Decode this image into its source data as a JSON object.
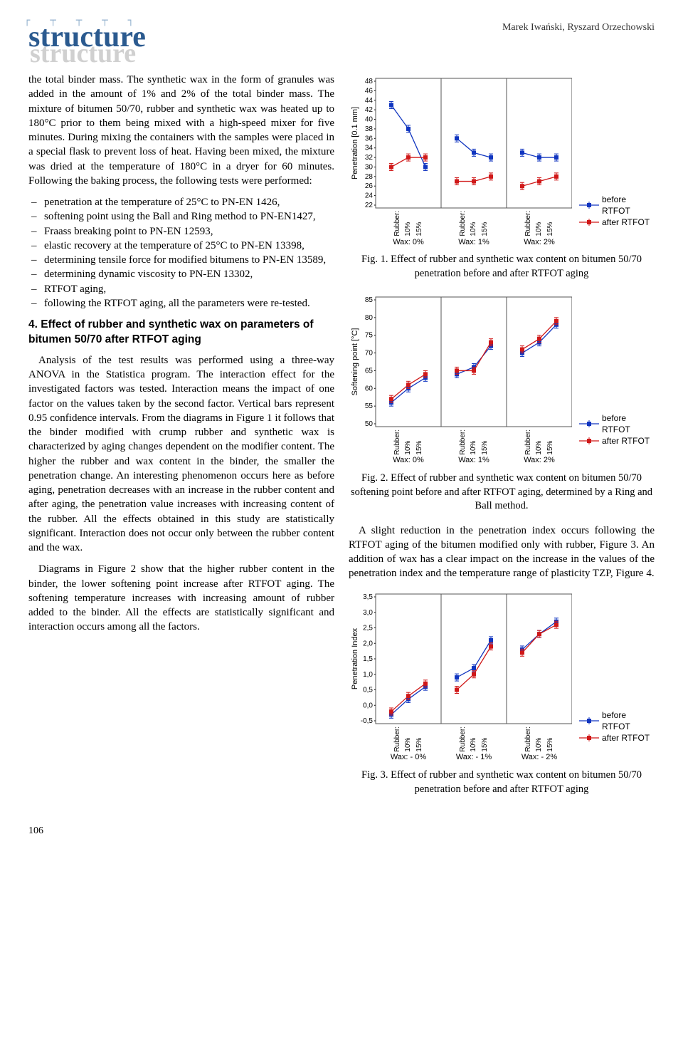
{
  "header": {
    "journal_fg": "structure",
    "journal_bg": "structure",
    "authors": "Marek Iwański, Ryszard Orzechowski"
  },
  "left": {
    "para1": "the total binder mass. The synthetic wax in the form of granules was added in the amount of 1% and 2% of the total binder mass. The mixture of bitumen 50/70, rubber and synthetic wax was heated up to 180°C prior to them being mixed with a high-speed mixer for five minutes. During mixing the containers with the samples were placed in a special flask to prevent loss of heat. Having been mixed, the mixture was dried at the temperature of 180°C in a dryer for 60 minutes. Following the baking process, the following tests were performed:",
    "bullets1": [
      "penetration at the temperature of 25°C to PN-EN 1426,",
      "softening point using the Ball and Ring method to PN-EN1427,",
      "Fraass breaking point to PN-EN 12593,",
      "elastic recovery at the temperature of 25°C to PN-EN 13398,",
      "determining tensile force for modified bitumens to PN-EN 13589,",
      "determining dynamic viscosity to PN-EN 13302,",
      "RTFOT aging,",
      "following the RTFOT aging, all the parameters were re-tested."
    ],
    "section4_title": "4. Effect of rubber and synthetic wax on parameters of bitumen 50/70 after RTFOT aging",
    "para2": "Analysis of the test results was performed using a three-way ANOVA in the Statistica program. The interaction effect for the investigated factors was tested. Interaction means the impact of one factor on the values taken by the second factor. Vertical bars represent 0.95 confidence intervals. From the diagrams in Figure 1 it follows that the binder modified with crump rubber and synthetic wax is characterized by aging changes dependent on the modifier content. The higher the rubber and wax content in the binder, the smaller the penetration change. An interesting phenomenon occurs here as before aging, penetration decreases with an increase in the rubber content and after aging, the penetration value increases with increasing content of the rubber. All the effects obtained in this study are statistically significant. Interaction does not occur only between the rubber content and the wax.",
    "para3": "Diagrams in Figure 2 show that the higher rubber content in the binder, the lower softening point increase after RTFOT aging. The softening temperature increases with increasing amount of rubber added to the binder. All the effects are statistically significant and interaction occurs among all the factors."
  },
  "right": {
    "figure1": {
      "type": "multipanel-line",
      "y_label": "Penetration [0.1 mm]",
      "y_min": 22,
      "y_max": 48,
      "y_step": 2,
      "panels": [
        {
          "label": "Wax: 0%",
          "x": [
            "Rubber:",
            "10%",
            "15%"
          ],
          "series": [
            {
              "color": "#1035c0",
              "vals": [
                43,
                38,
                30
              ]
            },
            {
              "color": "#d01818",
              "vals": [
                30,
                32,
                32
              ]
            }
          ]
        },
        {
          "label": "Wax: 1%",
          "x": [
            "Rubber:",
            "10%",
            "15%"
          ],
          "series": [
            {
              "color": "#1035c0",
              "vals": [
                36,
                33,
                32
              ]
            },
            {
              "color": "#d01818",
              "vals": [
                27,
                27,
                28
              ]
            }
          ]
        },
        {
          "label": "Wax: 2%",
          "x": [
            "Rubber:",
            "10%",
            "15%"
          ],
          "series": [
            {
              "color": "#1035c0",
              "vals": [
                33,
                32,
                32
              ]
            },
            {
              "color": "#d01818",
              "vals": [
                26,
                27,
                28
              ]
            }
          ]
        }
      ],
      "legend": [
        {
          "color": "#1035c0",
          "label": "before RTFOT"
        },
        {
          "color": "#d01818",
          "label": "after RTFOT"
        }
      ]
    },
    "caption1": "Fig. 1. Effect of rubber and synthetic wax content on bitumen 50/70 penetration before and after RTFOT aging",
    "figure2": {
      "type": "multipanel-line",
      "y_label": "Softening point [°C]",
      "y_min": 50,
      "y_max": 85,
      "y_step": 5,
      "panels": [
        {
          "label": "Wax: 0%",
          "x": [
            "Rubber:",
            "10%",
            "15%"
          ],
          "series": [
            {
              "color": "#1035c0",
              "vals": [
                56,
                60,
                63
              ]
            },
            {
              "color": "#d01818",
              "vals": [
                57,
                61,
                64
              ]
            }
          ]
        },
        {
          "label": "Wax: 1%",
          "x": [
            "Rubber:",
            "10%",
            "15%"
          ],
          "series": [
            {
              "color": "#1035c0",
              "vals": [
                64,
                66,
                72
              ]
            },
            {
              "color": "#d01818",
              "vals": [
                65,
                65,
                73
              ]
            }
          ]
        },
        {
          "label": "Wax: 2%",
          "x": [
            "Rubber:",
            "10%",
            "15%"
          ],
          "series": [
            {
              "color": "#1035c0",
              "vals": [
                70,
                73,
                78
              ]
            },
            {
              "color": "#d01818",
              "vals": [
                71,
                74,
                79
              ]
            }
          ]
        }
      ],
      "legend": [
        {
          "color": "#1035c0",
          "label": "before RTFOT"
        },
        {
          "color": "#d01818",
          "label": "after RTFOT"
        }
      ]
    },
    "caption2": "Fig. 2. Effect of rubber and synthetic wax content on bitumen 50/70 softening point before and after RTFOT aging, determined by a Ring and Ball method.",
    "para_mid": "A slight reduction in the penetration index occurs following the RTFOT aging of the bitumen modified only with rubber, Figure 3. An addition of wax has a clear impact on the increase in the values of the penetration index and the temperature range of plasticity TZP, Figure 4.",
    "figure3": {
      "type": "multipanel-line",
      "y_label": "Penetration Index",
      "y_min": -0.5,
      "y_max": 3.5,
      "y_step": 0.5,
      "panels": [
        {
          "label": "Wax: - 0%",
          "x": [
            "Rubber:",
            "10%",
            "15%"
          ],
          "series": [
            {
              "color": "#1035c0",
              "vals": [
                -0.3,
                0.2,
                0.6
              ]
            },
            {
              "color": "#d01818",
              "vals": [
                -0.2,
                0.3,
                0.7
              ]
            }
          ]
        },
        {
          "label": "Wax: - 1%",
          "x": [
            "Rubber:",
            "10%",
            "15%"
          ],
          "series": [
            {
              "color": "#1035c0",
              "vals": [
                0.9,
                1.2,
                2.1
              ]
            },
            {
              "color": "#d01818",
              "vals": [
                0.5,
                1.0,
                1.9
              ]
            }
          ]
        },
        {
          "label": "Wax: - 2%",
          "x": [
            "Rubber:",
            "10%",
            "15%"
          ],
          "series": [
            {
              "color": "#1035c0",
              "vals": [
                1.8,
                2.3,
                2.7
              ]
            },
            {
              "color": "#d01818",
              "vals": [
                1.7,
                2.3,
                2.6
              ]
            }
          ]
        }
      ],
      "legend": [
        {
          "color": "#1035c0",
          "label": "before RTFOT"
        },
        {
          "color": "#d01818",
          "label": "after RTFOT"
        }
      ]
    },
    "caption3": "Fig. 3. Effect of rubber and synthetic wax content on bitumen 50/70 penetration before and after RTFOT aging"
  },
  "styles": {
    "axis_color": "#000000",
    "tick_font_size": 10,
    "marker_size": 3,
    "line_width": 1.3,
    "panel_border_color": "#555555"
  },
  "page_number": "106"
}
